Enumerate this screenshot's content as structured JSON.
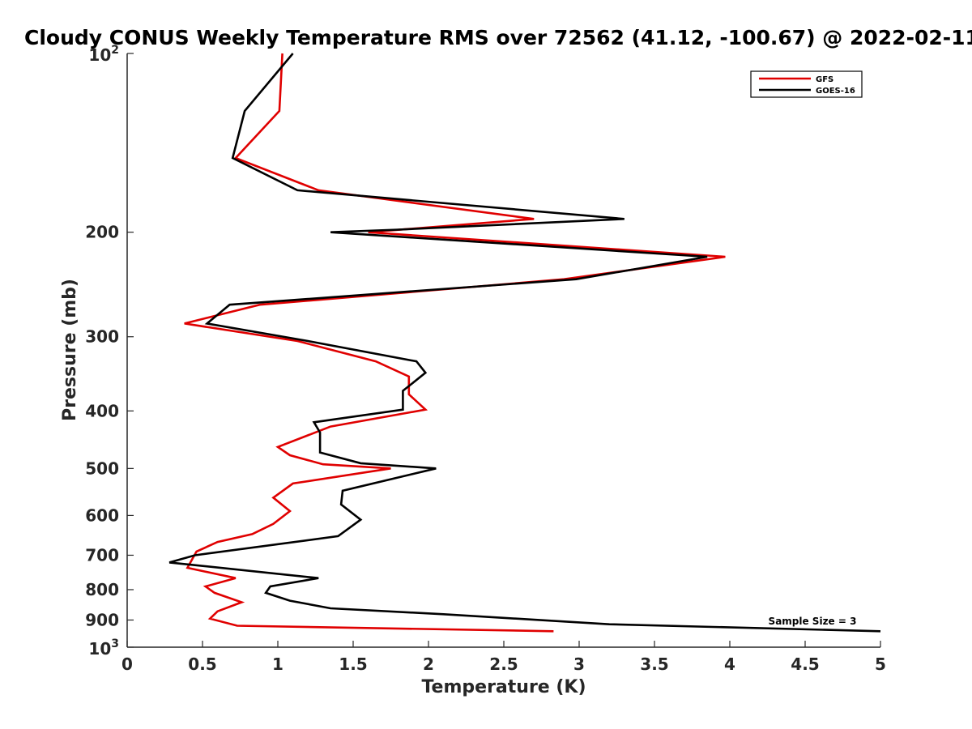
{
  "chart_data": {
    "type": "line",
    "title": "Cloudy CONUS Weekly Temperature RMS over 72562 (41.12, -100.67) @ 2022-02-11",
    "xlabel": "Temperature (K)",
    "ylabel": "Pressure (mb)",
    "xlim": [
      0,
      5
    ],
    "ylim": [
      100,
      1000
    ],
    "y_scale": "log",
    "y_reversed": true,
    "x_ticks": [
      "0",
      "0.5",
      "1",
      "1.5",
      "2",
      "2.5",
      "3",
      "3.5",
      "4",
      "4.5",
      "5"
    ],
    "y_ticks": [
      {
        "value": 100,
        "base": "10",
        "exp": "2"
      },
      {
        "value": 200,
        "label": "200"
      },
      {
        "value": 300,
        "label": "300"
      },
      {
        "value": 400,
        "label": "400"
      },
      {
        "value": 500,
        "label": "500"
      },
      {
        "value": 600,
        "label": "600"
      },
      {
        "value": 700,
        "label": "700"
      },
      {
        "value": 800,
        "label": "800"
      },
      {
        "value": 900,
        "label": "900"
      },
      {
        "value": 1000,
        "base": "10",
        "exp": "3"
      }
    ],
    "grid": false,
    "legend_position": "top-right",
    "annotation": "Sample Size = 3",
    "series": [
      {
        "name": "GFS",
        "color": "#e00000",
        "points": [
          [
            1.03,
            100
          ],
          [
            1.01,
            125
          ],
          [
            0.72,
            150
          ],
          [
            1.27,
            170
          ],
          [
            2.7,
            190
          ],
          [
            1.6,
            200
          ],
          [
            3.97,
            220
          ],
          [
            2.9,
            240
          ],
          [
            0.88,
            265
          ],
          [
            0.38,
            285
          ],
          [
            1.13,
            305
          ],
          [
            1.65,
            330
          ],
          [
            1.87,
            350
          ],
          [
            1.87,
            375
          ],
          [
            1.98,
            398
          ],
          [
            1.35,
            425
          ],
          [
            1.0,
            460
          ],
          [
            1.08,
            475
          ],
          [
            1.3,
            492
          ],
          [
            1.75,
            500
          ],
          [
            1.1,
            530
          ],
          [
            0.97,
            560
          ],
          [
            1.08,
            590
          ],
          [
            0.97,
            620
          ],
          [
            0.83,
            645
          ],
          [
            0.6,
            665
          ],
          [
            0.46,
            690
          ],
          [
            0.4,
            735
          ],
          [
            0.72,
            765
          ],
          [
            0.52,
            790
          ],
          [
            0.58,
            810
          ],
          [
            0.76,
            840
          ],
          [
            0.6,
            870
          ],
          [
            0.55,
            895
          ],
          [
            0.73,
            920
          ],
          [
            2.83,
            940
          ]
        ]
      },
      {
        "name": "GOES-16",
        "color": "#000000",
        "points": [
          [
            1.1,
            100
          ],
          [
            0.78,
            125
          ],
          [
            0.7,
            150
          ],
          [
            1.13,
            170
          ],
          [
            3.3,
            190
          ],
          [
            1.8,
            198
          ],
          [
            1.35,
            200
          ],
          [
            3.85,
            220
          ],
          [
            2.98,
            240
          ],
          [
            0.68,
            265
          ],
          [
            0.53,
            285
          ],
          [
            1.2,
            305
          ],
          [
            1.92,
            330
          ],
          [
            1.98,
            345
          ],
          [
            1.83,
            370
          ],
          [
            1.83,
            398
          ],
          [
            1.24,
            418
          ],
          [
            1.28,
            435
          ],
          [
            1.28,
            470
          ],
          [
            1.55,
            490
          ],
          [
            2.05,
            500
          ],
          [
            1.43,
            545
          ],
          [
            1.42,
            575
          ],
          [
            1.55,
            610
          ],
          [
            1.4,
            650
          ],
          [
            0.45,
            700
          ],
          [
            0.28,
            720
          ],
          [
            1.27,
            765
          ],
          [
            0.95,
            790
          ],
          [
            0.92,
            810
          ],
          [
            1.08,
            835
          ],
          [
            1.35,
            860
          ],
          [
            2.1,
            880
          ],
          [
            3.2,
            915
          ],
          [
            5.0,
            940
          ]
        ]
      }
    ]
  }
}
